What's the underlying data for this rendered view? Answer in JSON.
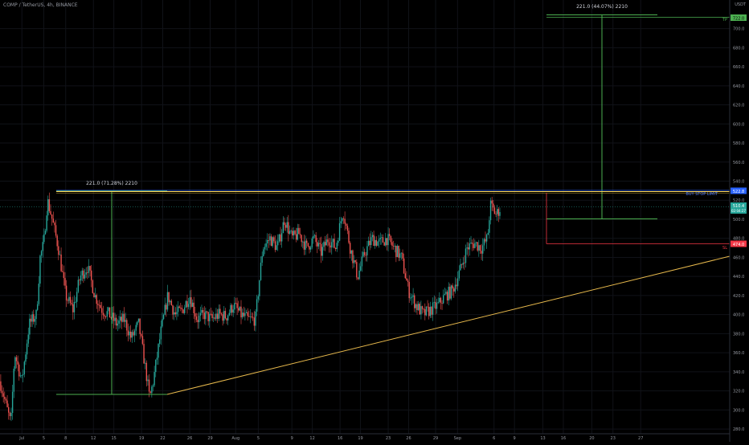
{
  "header": {
    "symbol": "COMP / TetherUS, 4h, BINANCE",
    "currency": "USDT"
  },
  "chart_data": {
    "type": "candlestick",
    "ylim": [
      275,
      730
    ],
    "y_ticks": [
      280,
      300,
      320,
      340,
      360,
      380,
      400,
      420,
      440,
      460,
      480,
      500,
      520,
      540,
      560,
      580,
      600,
      620,
      640,
      660,
      680,
      700
    ],
    "x_ticks": [
      {
        "label": "Jul",
        "pos": 0.03
      },
      {
        "label": "5",
        "pos": 0.06
      },
      {
        "label": "8",
        "pos": 0.09
      },
      {
        "label": "12",
        "pos": 0.128
      },
      {
        "label": "15",
        "pos": 0.156
      },
      {
        "label": "19",
        "pos": 0.194
      },
      {
        "label": "22",
        "pos": 0.223
      },
      {
        "label": "26",
        "pos": 0.26
      },
      {
        "label": "29",
        "pos": 0.288
      },
      {
        "label": "Aug",
        "pos": 0.323
      },
      {
        "label": "5",
        "pos": 0.354
      },
      {
        "label": "9",
        "pos": 0.4
      },
      {
        "label": "12",
        "pos": 0.428
      },
      {
        "label": "16",
        "pos": 0.466
      },
      {
        "label": "19",
        "pos": 0.494
      },
      {
        "label": "23",
        "pos": 0.532
      },
      {
        "label": "26",
        "pos": 0.56
      },
      {
        "label": "29",
        "pos": 0.597
      },
      {
        "label": "Sep",
        "pos": 0.627
      },
      {
        "label": "6",
        "pos": 0.677
      },
      {
        "label": "9",
        "pos": 0.705
      },
      {
        "label": "13",
        "pos": 0.744
      },
      {
        "label": "16",
        "pos": 0.772
      },
      {
        "label": "20",
        "pos": 0.811
      },
      {
        "label": "23",
        "pos": 0.84
      },
      {
        "label": "27",
        "pos": 0.878
      }
    ],
    "price_path": [
      [
        0.0,
        330
      ],
      [
        0.01,
        300
      ],
      [
        0.015,
        285
      ],
      [
        0.02,
        360
      ],
      [
        0.03,
        330
      ],
      [
        0.04,
        390
      ],
      [
        0.05,
        400
      ],
      [
        0.055,
        460
      ],
      [
        0.06,
        475
      ],
      [
        0.065,
        520
      ],
      [
        0.07,
        505
      ],
      [
        0.08,
        470
      ],
      [
        0.09,
        420
      ],
      [
        0.1,
        405
      ],
      [
        0.11,
        440
      ],
      [
        0.12,
        450
      ],
      [
        0.13,
        420
      ],
      [
        0.14,
        405
      ],
      [
        0.15,
        400
      ],
      [
        0.16,
        390
      ],
      [
        0.17,
        395
      ],
      [
        0.18,
        375
      ],
      [
        0.19,
        390
      ],
      [
        0.2,
        340
      ],
      [
        0.205,
        312
      ],
      [
        0.21,
        330
      ],
      [
        0.22,
        380
      ],
      [
        0.23,
        420
      ],
      [
        0.24,
        400
      ],
      [
        0.25,
        405
      ],
      [
        0.26,
        420
      ],
      [
        0.27,
        395
      ],
      [
        0.28,
        400
      ],
      [
        0.29,
        395
      ],
      [
        0.3,
        400
      ],
      [
        0.31,
        398
      ],
      [
        0.32,
        410
      ],
      [
        0.33,
        400
      ],
      [
        0.34,
        395
      ],
      [
        0.35,
        395
      ],
      [
        0.36,
        470
      ],
      [
        0.37,
        480
      ],
      [
        0.38,
        470
      ],
      [
        0.39,
        500
      ],
      [
        0.4,
        480
      ],
      [
        0.41,
        485
      ],
      [
        0.42,
        470
      ],
      [
        0.43,
        480
      ],
      [
        0.44,
        465
      ],
      [
        0.45,
        480
      ],
      [
        0.46,
        470
      ],
      [
        0.47,
        510
      ],
      [
        0.48,
        470
      ],
      [
        0.49,
        440
      ],
      [
        0.5,
        465
      ],
      [
        0.51,
        480
      ],
      [
        0.52,
        475
      ],
      [
        0.53,
        480
      ],
      [
        0.54,
        470
      ],
      [
        0.55,
        460
      ],
      [
        0.56,
        425
      ],
      [
        0.57,
        410
      ],
      [
        0.58,
        400
      ],
      [
        0.59,
        405
      ],
      [
        0.6,
        410
      ],
      [
        0.61,
        420
      ],
      [
        0.62,
        425
      ],
      [
        0.63,
        445
      ],
      [
        0.64,
        470
      ],
      [
        0.65,
        475
      ],
      [
        0.66,
        470
      ],
      [
        0.668,
        480
      ],
      [
        0.672,
        515
      ],
      [
        0.68,
        505
      ],
      [
        0.686,
        512
      ]
    ],
    "annotations": [
      {
        "text": "221.0 (71.28%) 2210"
      },
      {
        "text": "221.0 (44.07%) 2210"
      },
      {
        "text": "TP"
      },
      {
        "text": "SL"
      },
      {
        "text": "BUY STOP LIMIT"
      }
    ],
    "levels": {
      "tp": {
        "value": 722.0,
        "label": "722.0",
        "color": "#4caf50"
      },
      "entry": {
        "value": 522.8,
        "label": "522.8",
        "color": "#2962ff"
      },
      "current": {
        "value": 510.4,
        "label": "510.4",
        "sublabel": "02:04:27",
        "color": "#26a69a"
      },
      "sl": {
        "value": 474.0,
        "label": "474.0",
        "color": "#f23645"
      }
    },
    "colors": {
      "up": "#26a69a",
      "down": "#ef5350",
      "measure": "#4caf50",
      "trendline": "#e6b84c",
      "resistance": "#ffd54f",
      "grid": "#101218"
    }
  }
}
